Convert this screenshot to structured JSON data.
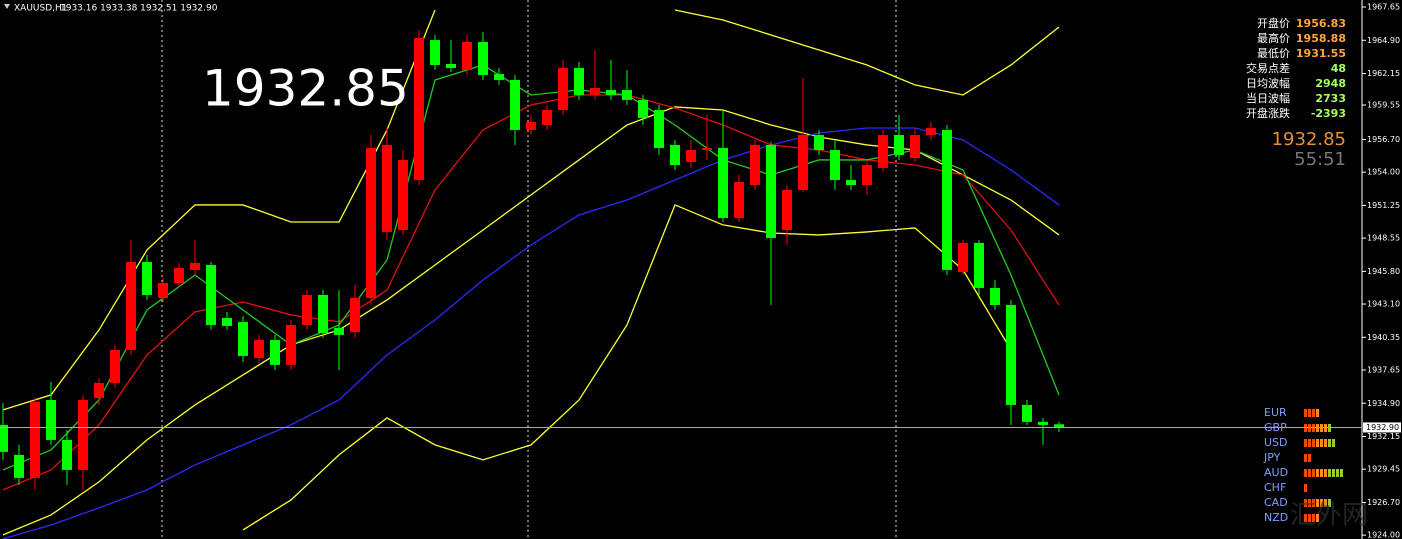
{
  "header": {
    "symbol": "XAUUSD,H1",
    "quote": "1933.16 1933.38 1932.51 1932.90"
  },
  "annotation": "1932.85",
  "info_panel": [
    {
      "label": "开盘价",
      "value": "1956.83"
    },
    {
      "label": "最高价",
      "value": "1958.88"
    },
    {
      "label": "最低价",
      "value": "1931.55"
    },
    {
      "label": "交易点差",
      "value": "48"
    },
    {
      "label": "日均波幅",
      "value": "2948"
    },
    {
      "label": "当日波幅",
      "value": "2733"
    },
    {
      "label": "开盘涨跌",
      "value": "-2393"
    }
  ],
  "bid": "1932.85",
  "timer": "55:51",
  "strength": [
    {
      "name": "EUR",
      "value": 4
    },
    {
      "name": "GBP",
      "value": 7
    },
    {
      "name": "USD",
      "value": 8
    },
    {
      "name": "JPY",
      "value": 2
    },
    {
      "name": "AUD",
      "value": 10
    },
    {
      "name": "CHF",
      "value": 1
    },
    {
      "name": "CAD",
      "value": 7
    },
    {
      "name": "NZD",
      "value": 4
    }
  ],
  "watermark": "汇外网",
  "chart_data": {
    "type": "candlestick",
    "up_color": "#ff0000",
    "down_color": "#00ff00",
    "open": [
      1933.11,
      1930.63,
      1928.73,
      1935.17,
      1931.87,
      1929.39,
      1935.34,
      1936.58,
      1939.31,
      1946.58,
      1943.6,
      1944.84,
      1945.92,
      1946.33,
      1941.95,
      1941.62,
      1938.64,
      1940.13,
      1938.07,
      1941.37,
      1943.85,
      1941.12,
      1940.79,
      1943.6,
      1949.06,
      1949.22,
      1953.35,
      1964.92,
      1962.94,
      1962.45,
      1964.76,
      1962.11,
      1961.62,
      1957.49,
      1957.9,
      1959.14,
      1962.61,
      1960.38,
      1960.79,
      1960.79,
      1959.97,
      1959.14,
      1956.25,
      1954.84,
      1955.83,
      1956.0,
      1950.21,
      1952.94,
      1956.25,
      1949.22,
      1952.53,
      1957.07,
      1955.83,
      1953.35,
      1952.94,
      1954.35,
      1957.07,
      1955.17,
      1957.07,
      1957.49,
      1945.75,
      1948.15,
      1944.43,
      1943.02,
      1934.76,
      1933.36,
      1933.16
    ],
    "high": [
      1934.93,
      1931.46,
      1935.34,
      1936.66,
      1932.69,
      1935.59,
      1936.99,
      1939.72,
      1948.4,
      1947.16,
      1945.26,
      1946.5,
      1948.4,
      1946.58,
      1942.45,
      1942.12,
      1940.55,
      1940.55,
      1941.79,
      1944.26,
      1944.26,
      1944.26,
      1944.68,
      1957.07,
      1957.65,
      1955.83,
      1965.75,
      1965.34,
      1964.92,
      1965.34,
      1965.59,
      1962.61,
      1962.03,
      1958.73,
      1959.55,
      1963.27,
      1963.11,
      1964.1,
      1963.27,
      1962.45,
      1960.38,
      1959.55,
      1956.66,
      1956.66,
      1958.73,
      1959.14,
      1953.77,
      1956.66,
      1956.5,
      1952.94,
      1961.78,
      1957.49,
      1956.66,
      1954.59,
      1955.01,
      1957.49,
      1958.73,
      1957.65,
      1958.15,
      1957.9,
      1948.4,
      1948.4,
      1945.09,
      1943.44,
      1935.17,
      1933.69,
      1933.38
    ],
    "low": [
      1930.22,
      1928.15,
      1927.74,
      1931.46,
      1928.15,
      1927.74,
      1934.76,
      1936.17,
      1938.89,
      1943.44,
      1943.27,
      1944.43,
      1945.5,
      1940.96,
      1940.96,
      1938.31,
      1938.23,
      1937.65,
      1937.65,
      1940.96,
      1940.3,
      1937.65,
      1940.3,
      1943.02,
      1948.4,
      1948.81,
      1952.94,
      1962.45,
      1962.28,
      1962.03,
      1961.62,
      1961.21,
      1956.25,
      1957.07,
      1957.49,
      1958.73,
      1959.97,
      1959.97,
      1959.97,
      1959.55,
      1957.9,
      1955.42,
      1954.18,
      1954.35,
      1955.01,
      1949.88,
      1949.88,
      1952.53,
      1943.02,
      1947.98,
      1952.36,
      1955.42,
      1952.53,
      1952.53,
      1952.12,
      1954.02,
      1955.01,
      1954.84,
      1956.66,
      1945.5,
      1945.5,
      1943.85,
      1942.61,
      1933.11,
      1933.11,
      1931.46,
      1932.51
    ],
    "close": [
      1930.88,
      1928.73,
      1935.01,
      1931.87,
      1929.39,
      1935.17,
      1936.58,
      1939.31,
      1946.58,
      1943.85,
      1944.84,
      1946.08,
      1946.5,
      1941.37,
      1941.29,
      1938.81,
      1940.13,
      1938.07,
      1941.37,
      1943.85,
      1940.71,
      1940.55,
      1943.6,
      1956.0,
      1956.25,
      1955.01,
      1965.09,
      1962.86,
      1962.61,
      1964.76,
      1962.03,
      1961.62,
      1957.49,
      1958.15,
      1959.14,
      1962.61,
      1960.38,
      1960.96,
      1960.38,
      1959.97,
      1958.48,
      1956.0,
      1954.59,
      1955.83,
      1956.0,
      1950.21,
      1953.19,
      1956.25,
      1948.56,
      1952.53,
      1957.07,
      1955.83,
      1953.35,
      1952.94,
      1954.59,
      1957.07,
      1955.42,
      1957.07,
      1957.65,
      1945.92,
      1948.15,
      1944.43,
      1943.02,
      1934.76,
      1933.36,
      1933.11,
      1932.9
    ],
    "overlays": [
      {
        "color": "#ffff33",
        "x": [
          0,
          3,
          6,
          9,
          12,
          15,
          18,
          21,
          24,
          27,
          30,
          33,
          36,
          39,
          42,
          45,
          48,
          51,
          54,
          57,
          60,
          63,
          66
        ],
        "values": [
          1934.35,
          1935.59,
          1940.96,
          1947.57,
          1951.29,
          1951.29,
          1949.88,
          1949.88,
          1957.49,
          1967.4,
          null,
          null,
          null,
          null,
          1967.4,
          1966.58,
          1965.34,
          1964.1,
          1962.86,
          1961.21,
          1960.38,
          1962.86,
          1966.0
        ]
      },
      {
        "color": "#ffff33",
        "x": [
          0,
          3,
          6,
          9,
          12,
          15,
          18,
          21,
          24,
          27,
          30,
          33,
          36,
          39,
          42,
          45,
          48,
          51,
          54,
          57,
          60,
          63,
          66
        ],
        "values": [
          1924.02,
          1925.67,
          1928.4,
          1931.87,
          1934.76,
          1937.24,
          1939.72,
          1940.96,
          1943.44,
          1946.33,
          1949.22,
          1952.12,
          1955.01,
          1957.9,
          1959.39,
          1959.14,
          1957.9,
          1956.91,
          1956.25,
          1955.83,
          1953.77,
          1951.7,
          1948.81
        ]
      },
      {
        "color": "#ffff33",
        "x": [
          0,
          3,
          6,
          9,
          12,
          15,
          18,
          21,
          24,
          27,
          30,
          33,
          36,
          39,
          42,
          45,
          48,
          51,
          54,
          57,
          60,
          63,
          66
        ],
        "values": [
          null,
          null,
          null,
          null,
          null,
          1924.43,
          1926.91,
          1930.63,
          1933.69,
          1931.46,
          1930.22,
          1931.46,
          1935.17,
          1941.37,
          1951.29,
          1949.64,
          1948.97,
          1948.81,
          1949.06,
          1949.39,
          1945.92,
          1939.31,
          null
        ]
      },
      {
        "color": "#2a2aff",
        "x": [
          0,
          3,
          6,
          9,
          12,
          15,
          18,
          21,
          24,
          27,
          30,
          33,
          36,
          39,
          42,
          45,
          48,
          51,
          54,
          57,
          60,
          63,
          66
        ],
        "values": [
          1923.69,
          1924.84,
          1926.25,
          1927.74,
          1929.8,
          1931.46,
          1933.11,
          1935.17,
          1938.89,
          1941.79,
          1945.09,
          1947.98,
          1950.46,
          1951.7,
          1953.35,
          1955.01,
          1956.25,
          1957.24,
          1957.65,
          1957.65,
          1956.66,
          1954.18,
          1951.29
        ]
      },
      {
        "color": "#e01010",
        "x": [
          0,
          3,
          6,
          9,
          12,
          15,
          18,
          21,
          24,
          27,
          30,
          33,
          36,
          39,
          42,
          45,
          48,
          51,
          54,
          57,
          60,
          63,
          66
        ],
        "values": [
          1927.74,
          1929.39,
          1933.11,
          1938.89,
          1942.45,
          1943.27,
          1942.2,
          1941.62,
          1944.26,
          1952.53,
          1957.49,
          1959.55,
          1960.38,
          1960.38,
          1959.3,
          1957.9,
          1956.25,
          1955.83,
          1955.01,
          1954.59,
          1953.77,
          1949.22,
          1943.02
        ]
      },
      {
        "color": "#22cc22",
        "x": [
          0,
          3,
          6,
          9,
          12,
          15,
          18,
          21,
          24,
          27,
          30,
          33,
          36,
          39,
          42,
          45,
          48,
          51,
          54,
          57,
          60,
          63,
          66
        ],
        "values": [
          1929.39,
          1931.04,
          1935.17,
          1942.61,
          1945.5,
          1942.61,
          1939.72,
          1941.37,
          1946.74,
          1961.62,
          1962.86,
          1960.38,
          1960.79,
          1960.38,
          1957.9,
          1955.01,
          1953.77,
          1955.01,
          1955.01,
          1955.83,
          1954.18,
          1945.5,
          1935.59
        ]
      }
    ],
    "ylim": [
      1923.68,
      1968.23
    ],
    "yticks": [
      1967.65,
      {
        "value": 1964.9,
        "label": "1964.90"
      },
      1962.15,
      1959.55,
      {
        "value": 1956.7,
        "label": "1956.70"
      },
      {
        "value": 1954,
        "label": "1954.00"
      },
      1951.25,
      1948.55,
      {
        "value": 1945.8,
        "label": "1945.80"
      },
      {
        "value": 1943.1,
        "label": "1943.10"
      },
      1940.35,
      1937.65,
      {
        "value": 1934.9,
        "label": "1934.90"
      },
      1932.15,
      1929.45,
      {
        "value": 1926.7,
        "label": "1926.70"
      },
      {
        "value": 1924,
        "label": "1924.00"
      }
    ],
    "price_line": {
      "value": 1932.9,
      "label": "1932.90"
    }
  }
}
